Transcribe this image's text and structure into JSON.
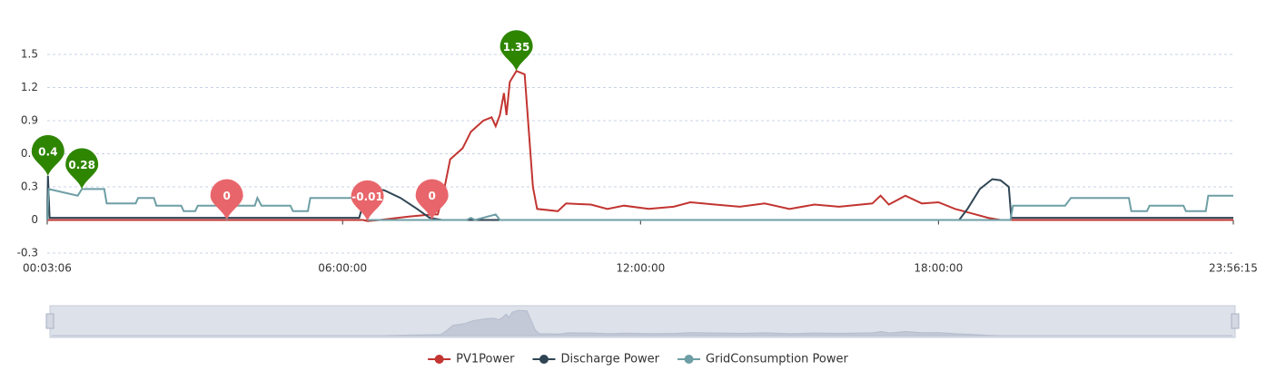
{
  "chart_data": {
    "type": "line",
    "ylim": [
      -0.3,
      1.5
    ],
    "yticks": [
      -0.3,
      0,
      0.3,
      0.6,
      0.9,
      1.2,
      1.5
    ],
    "grid": true,
    "xlim": [
      "00:03:06",
      "23:56:15"
    ],
    "xticks": [
      "00:03:06",
      "06:00:00",
      "12:00:00",
      "18:00:00",
      "23:56:15"
    ],
    "legend": "bottom",
    "series": [
      {
        "name": "PV1Power",
        "color": "#c23531",
        "x": [
          "00:03:06",
          "06:25:00",
          "06:30:00",
          "06:45:00",
          "07:20:00",
          "07:48:00",
          "07:55:00",
          "08:02:00",
          "08:10:00",
          "08:25:00",
          "08:35:00",
          "08:50:00",
          "09:00:00",
          "09:05:00",
          "09:10:00",
          "09:15:00",
          "09:18:00",
          "09:22:00",
          "09:30:00",
          "09:40:00",
          "09:50:00",
          "09:55:00",
          "10:20:00",
          "10:30:00",
          "11:00:00",
          "11:20:00",
          "11:40:00",
          "12:10:00",
          "12:40:00",
          "13:00:00",
          "13:30:00",
          "14:00:00",
          "14:30:00",
          "15:00:00",
          "15:30:00",
          "16:00:00",
          "16:40:00",
          "16:50:00",
          "17:00:00",
          "17:20:00",
          "17:40:00",
          "18:00:00",
          "18:20:00",
          "18:40:00",
          "19:00:00",
          "19:15:00",
          "23:56:15"
        ],
        "values": [
          0,
          0,
          -0.01,
          0,
          0.03,
          0.05,
          0.05,
          0.25,
          0.55,
          0.65,
          0.8,
          0.9,
          0.93,
          0.85,
          0.95,
          1.15,
          0.95,
          1.25,
          1.35,
          1.32,
          0.3,
          0.1,
          0.08,
          0.15,
          0.14,
          0.1,
          0.13,
          0.1,
          0.12,
          0.16,
          0.14,
          0.12,
          0.15,
          0.1,
          0.14,
          0.12,
          0.15,
          0.22,
          0.14,
          0.22,
          0.15,
          0.16,
          0.1,
          0.06,
          0.02,
          0,
          0
        ]
      },
      {
        "name": "Discharge Power",
        "color": "#2f4554",
        "x": [
          "00:03:06",
          "00:04:00",
          "00:06:00",
          "06:20:00",
          "06:30:00",
          "06:50:00",
          "07:10:00",
          "07:30:00",
          "07:45:00",
          "08:00:00",
          "18:25:00",
          "18:35:00",
          "18:50:00",
          "19:05:00",
          "19:15:00",
          "19:25:00",
          "19:28:00",
          "23:56:15"
        ],
        "values": [
          0,
          0.4,
          0.02,
          0.02,
          0.28,
          0.27,
          0.2,
          0.1,
          0.02,
          0,
          0,
          0.1,
          0.28,
          0.37,
          0.36,
          0.3,
          0.02,
          0.02
        ]
      },
      {
        "name": "GridConsumption Power",
        "color": "#6e9ea5",
        "x": [
          "00:03:06",
          "00:05:00",
          "00:40:00",
          "00:45:00",
          "01:12:00",
          "01:15:00",
          "01:50:00",
          "01:53:00",
          "02:12:00",
          "02:15:00",
          "02:45:00",
          "02:48:00",
          "03:02:00",
          "03:05:00",
          "03:38:00",
          "03:40:00",
          "03:43:00",
          "04:14:00",
          "04:17:00",
          "04:22:00",
          "04:57:00",
          "05:00:00",
          "05:18:00",
          "05:21:00",
          "06:24:00",
          "06:30:00",
          "08:30:00",
          "08:35:00",
          "08:40:00",
          "09:05:00",
          "09:10:00",
          "19:27:00",
          "19:30:00",
          "20:33:00",
          "20:40:00",
          "21:50:00",
          "21:53:00",
          "22:12:00",
          "22:15:00",
          "22:56:00",
          "22:59:00",
          "23:23:00",
          "23:26:00",
          "23:56:15"
        ],
        "values": [
          0,
          0.28,
          0.22,
          0.28,
          0.28,
          0.15,
          0.15,
          0.2,
          0.2,
          0.13,
          0.13,
          0.08,
          0.08,
          0.13,
          0.13,
          0,
          0.13,
          0.13,
          0.2,
          0.13,
          0.13,
          0.08,
          0.08,
          0.2,
          0.2,
          0,
          0,
          0.02,
          0,
          0.05,
          0,
          0,
          0.13,
          0.13,
          0.2,
          0.2,
          0.08,
          0.08,
          0.13,
          0.13,
          0.08,
          0.08,
          0.22,
          0.22
        ]
      }
    ],
    "markers": [
      {
        "x": "00:04:00",
        "value": 0.4,
        "color": "#2e8500"
      },
      {
        "x": "00:45:00",
        "value": 0.28,
        "color": "#2e8500"
      },
      {
        "x": "09:30:00",
        "value": 1.35,
        "color": "#2e8500"
      },
      {
        "x": "03:40:00",
        "value": 0,
        "color": "#e8666b"
      },
      {
        "x": "06:30:00",
        "value": -0.01,
        "color": "#e8666b"
      },
      {
        "x": "07:48:00",
        "value": 0,
        "color": "#e8666b"
      }
    ]
  }
}
